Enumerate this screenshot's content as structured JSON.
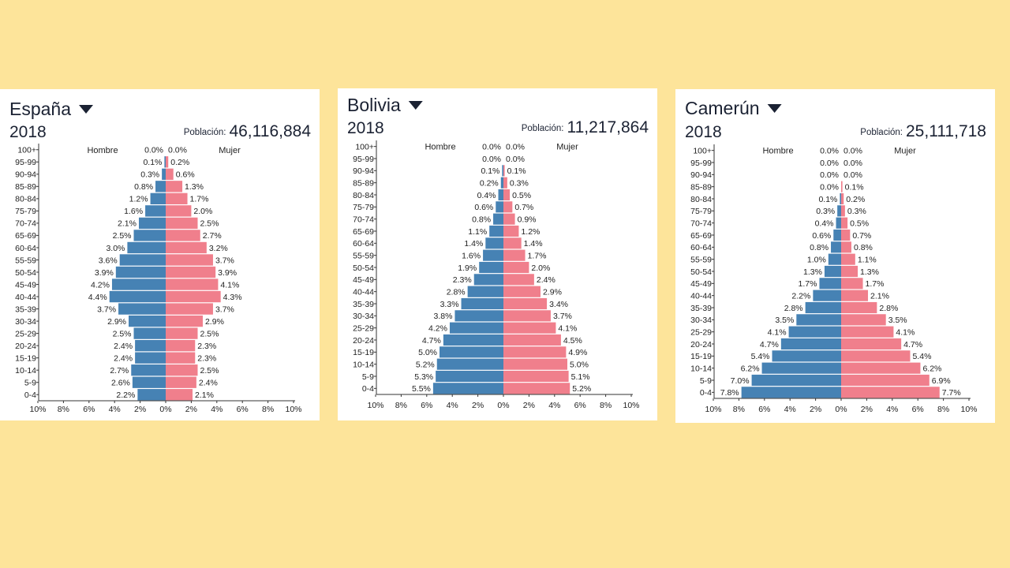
{
  "pyramids": [
    {
      "country": "España",
      "year": "2018",
      "population_label": "Población:",
      "population_value": "46,116,884",
      "male_label": "Hombre",
      "female_label": "Mujer",
      "dropdown_icon": "triangle-down-icon"
    },
    {
      "country": "Bolivia",
      "year": "2018",
      "population_label": "Población:",
      "population_value": "11,217,864",
      "male_label": "Hombre",
      "female_label": "Mujer",
      "dropdown_icon": "triangle-down-icon"
    },
    {
      "country": "Camerún",
      "year": "2018",
      "population_label": "Población:",
      "population_value": "25,111,718",
      "male_label": "Hombre",
      "female_label": "Mujer",
      "dropdown_icon": "triangle-down-icon"
    }
  ],
  "colors": {
    "background": "#fde49a",
    "male": "#4682b4",
    "female": "#f07f8c"
  },
  "chart_data": [
    {
      "type": "bar",
      "orientation": "horizontal-population-pyramid",
      "title": "España",
      "categories": [
        "100+",
        "95-99",
        "90-94",
        "85-89",
        "80-84",
        "75-79",
        "70-74",
        "65-69",
        "60-64",
        "55-59",
        "50-54",
        "45-49",
        "40-44",
        "35-39",
        "30-34",
        "25-29",
        "20-24",
        "15-19",
        "10-14",
        "5-9",
        "0-4"
      ],
      "series": [
        {
          "name": "Hombre",
          "values": [
            0.0,
            0.1,
            0.3,
            0.8,
            1.2,
            1.6,
            2.1,
            2.5,
            3.0,
            3.6,
            3.9,
            4.2,
            4.4,
            3.7,
            2.9,
            2.5,
            2.4,
            2.4,
            2.7,
            2.6,
            2.2
          ]
        },
        {
          "name": "Mujer",
          "values": [
            0.0,
            0.2,
            0.6,
            1.3,
            1.7,
            2.0,
            2.5,
            2.7,
            3.2,
            3.7,
            3.9,
            4.1,
            4.3,
            3.7,
            2.9,
            2.5,
            2.3,
            2.3,
            2.5,
            2.4,
            2.1
          ]
        }
      ],
      "xticks": [
        "10%",
        "8%",
        "6%",
        "4%",
        "2%",
        "0%",
        "2%",
        "4%",
        "6%",
        "8%",
        "10%"
      ],
      "xlim": [
        -10,
        10
      ]
    },
    {
      "type": "bar",
      "orientation": "horizontal-population-pyramid",
      "title": "Bolivia",
      "categories": [
        "100+",
        "95-99",
        "90-94",
        "85-89",
        "80-84",
        "75-79",
        "70-74",
        "65-69",
        "60-64",
        "55-59",
        "50-54",
        "45-49",
        "40-44",
        "35-39",
        "30-34",
        "25-29",
        "20-24",
        "15-19",
        "10-14",
        "5-9",
        "0-4"
      ],
      "series": [
        {
          "name": "Hombre",
          "values": [
            0.0,
            0.0,
            0.1,
            0.2,
            0.4,
            0.6,
            0.8,
            1.1,
            1.4,
            1.6,
            1.9,
            2.3,
            2.8,
            3.3,
            3.8,
            4.2,
            4.7,
            5.0,
            5.2,
            5.3,
            5.5
          ]
        },
        {
          "name": "Mujer",
          "values": [
            0.0,
            0.0,
            0.1,
            0.3,
            0.5,
            0.7,
            0.9,
            1.2,
            1.4,
            1.7,
            2.0,
            2.4,
            2.9,
            3.4,
            3.7,
            4.1,
            4.5,
            4.9,
            5.0,
            5.1,
            5.2
          ]
        }
      ],
      "xticks": [
        "10%",
        "8%",
        "6%",
        "4%",
        "2%",
        "0%",
        "2%",
        "4%",
        "6%",
        "8%",
        "10%"
      ],
      "xlim": [
        -10,
        10
      ]
    },
    {
      "type": "bar",
      "orientation": "horizontal-population-pyramid",
      "title": "Camerún",
      "categories": [
        "100+",
        "95-99",
        "90-94",
        "85-89",
        "80-84",
        "75-79",
        "70-74",
        "65-69",
        "60-64",
        "55-59",
        "50-54",
        "45-49",
        "40-44",
        "35-39",
        "30-34",
        "25-29",
        "20-24",
        "15-19",
        "10-14",
        "5-9",
        "0-4"
      ],
      "series": [
        {
          "name": "Hombre",
          "values": [
            0.0,
            0.0,
            0.0,
            0.0,
            0.1,
            0.3,
            0.4,
            0.6,
            0.8,
            1.0,
            1.3,
            1.7,
            2.2,
            2.8,
            3.5,
            4.1,
            4.7,
            5.4,
            6.2,
            7.0,
            7.8
          ]
        },
        {
          "name": "Mujer",
          "values": [
            0.0,
            0.0,
            0.0,
            0.1,
            0.2,
            0.3,
            0.5,
            0.7,
            0.8,
            1.1,
            1.3,
            1.7,
            2.1,
            2.8,
            3.5,
            4.1,
            4.7,
            5.4,
            6.2,
            6.9,
            7.7
          ]
        }
      ],
      "xticks": [
        "10%",
        "8%",
        "6%",
        "4%",
        "2%",
        "0%",
        "2%",
        "4%",
        "6%",
        "8%",
        "10%"
      ],
      "xlim": [
        -10,
        10
      ]
    }
  ]
}
